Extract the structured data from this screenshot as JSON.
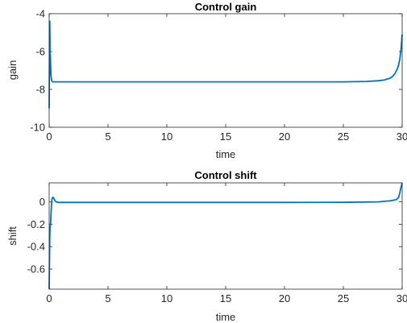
{
  "chart_data": [
    {
      "type": "line",
      "title": "Control gain",
      "xlabel": "time",
      "ylabel": "gain",
      "xlim": [
        0,
        30
      ],
      "ylim": [
        -10,
        -4
      ],
      "xticks": [
        0,
        5,
        10,
        15,
        20,
        25,
        30
      ],
      "yticks": [
        -10,
        -8,
        -6,
        -4
      ],
      "grid": false,
      "color": "#0072BD",
      "series": [
        {
          "x": [
            0,
            0.02,
            0.05,
            0.07,
            0.08,
            0.1,
            0.13,
            0.16,
            0.2,
            0.25,
            0.3,
            0.4,
            0.5,
            1,
            2,
            5,
            10,
            15,
            20,
            25,
            27,
            28,
            28.5,
            29,
            29.2,
            29.4,
            29.6,
            29.7,
            29.8,
            29.9,
            30
          ],
          "y": [
            -9.0,
            -7.0,
            -4.4,
            -5.5,
            -7.2,
            -6.2,
            -6.8,
            -7.3,
            -7.5,
            -7.57,
            -7.6,
            -7.6,
            -7.6,
            -7.6,
            -7.6,
            -7.6,
            -7.6,
            -7.6,
            -7.6,
            -7.6,
            -7.58,
            -7.54,
            -7.5,
            -7.4,
            -7.3,
            -7.15,
            -6.9,
            -6.7,
            -6.4,
            -5.9,
            -5.1
          ]
        }
      ]
    },
    {
      "type": "line",
      "title": "Control shift",
      "xlabel": "time",
      "ylabel": "shift",
      "xlim": [
        0,
        30
      ],
      "ylim": [
        -0.78,
        0.17
      ],
      "xticks": [
        0,
        5,
        10,
        15,
        20,
        25,
        30
      ],
      "yticks": [
        -0.6,
        -0.4,
        -0.2,
        0
      ],
      "grid": false,
      "color": "#0072BD",
      "series": [
        {
          "x": [
            0,
            0.02,
            0.05,
            0.08,
            0.1,
            0.13,
            0.16,
            0.2,
            0.25,
            0.3,
            0.35,
            0.4,
            0.5,
            0.6,
            0.8,
            1,
            2,
            5,
            10,
            15,
            20,
            25,
            28,
            29,
            29.5,
            29.7,
            29.8,
            29.9,
            30
          ],
          "y": [
            -0.78,
            -0.6,
            -0.3,
            -0.22,
            -0.22,
            -0.18,
            -0.1,
            -0.02,
            0.03,
            0.04,
            0.04,
            0.03,
            0.01,
            0.0,
            -0.005,
            -0.005,
            -0.005,
            -0.005,
            -0.005,
            -0.005,
            -0.005,
            -0.004,
            0.0,
            0.01,
            0.02,
            0.04,
            0.08,
            0.13,
            0.17
          ]
        }
      ]
    }
  ]
}
